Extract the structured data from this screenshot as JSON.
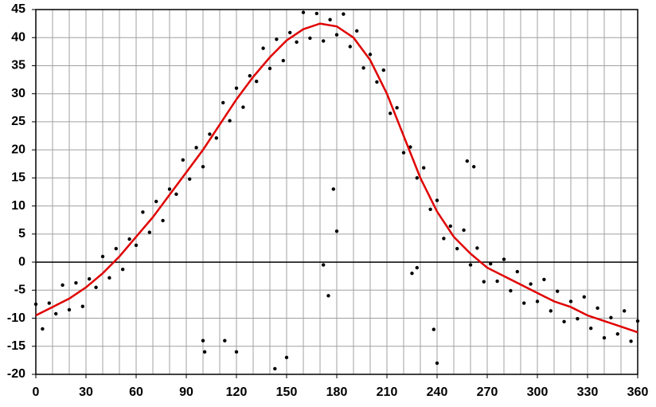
{
  "chart_data": {
    "type": "scatter",
    "xlim": [
      0,
      360
    ],
    "ylim": [
      -20,
      45
    ],
    "xticks": [
      0,
      30,
      60,
      90,
      120,
      150,
      180,
      210,
      240,
      270,
      300,
      330,
      360
    ],
    "xminorticks": [
      0,
      10,
      20,
      30,
      40,
      50,
      60,
      70,
      80,
      90,
      100,
      110,
      120,
      130,
      140,
      150,
      160,
      170,
      180,
      190,
      200,
      210,
      220,
      230,
      240,
      250,
      260,
      270,
      280,
      290,
      300,
      310,
      320,
      330,
      340,
      350,
      360
    ],
    "yticks": [
      -20,
      -15,
      -10,
      -5,
      0,
      5,
      10,
      15,
      20,
      25,
      30,
      35,
      40,
      45
    ],
    "grid": true,
    "series": [
      {
        "type": "scatter",
        "color": "#000000",
        "x": [
          0,
          4,
          8,
          12,
          16,
          20,
          24,
          28,
          32,
          36,
          40,
          44,
          48,
          52,
          56,
          60,
          64,
          68,
          72,
          76,
          80,
          84,
          88,
          92,
          96,
          100,
          104,
          108,
          112,
          116,
          120,
          124,
          128,
          132,
          136,
          140,
          144,
          148,
          152,
          156,
          160,
          164,
          168,
          172,
          176,
          180,
          184,
          188,
          192,
          196,
          200,
          204,
          208,
          212,
          216,
          220,
          224,
          228,
          232,
          236,
          240,
          244,
          248,
          252,
          256,
          260,
          264,
          268,
          272,
          276,
          280,
          284,
          288,
          292,
          296,
          300,
          304,
          308,
          312,
          316,
          320,
          324,
          328,
          332,
          336,
          340,
          344,
          348,
          352,
          356,
          360,
          100,
          101,
          113,
          120,
          143,
          150,
          172,
          175,
          178,
          180,
          225,
          228,
          238,
          240,
          258,
          262
        ],
        "values": [
          -7.5,
          -11.9,
          -7.3,
          -9.2,
          -4.1,
          -8.5,
          -3.7,
          -7.9,
          -3.0,
          -4.5,
          1,
          -2.8,
          2.4,
          -1.3,
          4.1,
          3,
          8.9,
          5.3,
          10.8,
          7.4,
          13,
          12.1,
          18.2,
          14.8,
          20.4,
          17,
          22.8,
          22.1,
          28.4,
          25.2,
          31,
          27.6,
          33.2,
          32.2,
          38.1,
          34.5,
          39.7,
          35.9,
          40.9,
          39.2,
          44.5,
          39.9,
          44.3,
          39.4,
          43.2,
          40.5,
          44.2,
          38.4,
          41.2,
          34.6,
          37,
          32.1,
          34.2,
          26.5,
          27.5,
          19.5,
          20.5,
          15,
          16.8,
          9.4,
          11,
          4.2,
          6.4,
          2.4,
          5.7,
          -0.5,
          2.5,
          -3.5,
          -0.3,
          -3.4,
          0.5,
          -5.1,
          -1.7,
          -7.3,
          -3.9,
          -7,
          -3.1,
          -8.7,
          -5.2,
          -10.6,
          -7,
          -10.1,
          -6.2,
          -11.8,
          -8.2,
          -13.5,
          -9.9,
          -12.8,
          -8.7,
          -14.1,
          -10.5,
          -14,
          -16,
          -14,
          -16,
          -19,
          -17,
          -0.5,
          -6,
          13,
          5.5,
          -2,
          -1,
          -12,
          -18,
          18,
          17
        ]
      },
      {
        "type": "line",
        "color": "#e00000",
        "x": [
          0,
          10,
          20,
          30,
          40,
          50,
          60,
          70,
          80,
          90,
          100,
          110,
          120,
          130,
          140,
          150,
          160,
          170,
          180,
          190,
          200,
          210,
          220,
          230,
          240,
          250,
          260,
          270,
          280,
          290,
          300,
          310,
          320,
          330,
          340,
          350,
          360
        ],
        "values": [
          -9.5,
          -8,
          -6.5,
          -4.5,
          -2,
          1,
          4.5,
          8,
          12,
          16,
          20,
          24.5,
          29,
          33,
          36.5,
          39.5,
          41.5,
          42.5,
          42,
          40,
          36,
          30,
          22.5,
          15,
          9,
          4.5,
          1.5,
          -1,
          -2.5,
          -4,
          -5.5,
          -7,
          -8,
          -9.5,
          -10.5,
          -11.5,
          -12.5
        ]
      }
    ]
  }
}
